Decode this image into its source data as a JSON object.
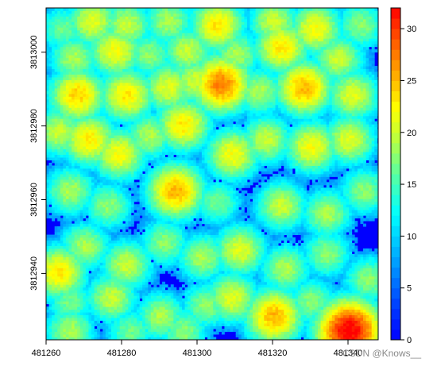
{
  "chart_data": {
    "type": "heatmap",
    "title": "",
    "xlabel": "",
    "ylabel": "",
    "x_ticks": [
      "481260",
      "481280",
      "481300",
      "481320",
      "481340"
    ],
    "x_tick_values": [
      481260,
      481280,
      481300,
      481320,
      481340
    ],
    "y_ticks": [
      "3812940",
      "3812960",
      "3812980",
      "3813000"
    ],
    "y_tick_values": [
      3812940,
      3812960,
      3812980,
      3813000
    ],
    "xlim": [
      481260,
      481348
    ],
    "ylim": [
      3812922,
      3813012
    ],
    "colorbar": {
      "ticks": [
        "0",
        "5",
        "10",
        "15",
        "20",
        "25",
        "30"
      ],
      "tick_values": [
        0,
        5,
        10,
        15,
        20,
        25,
        30
      ],
      "range": [
        0,
        32
      ],
      "colors": [
        "#0000ff",
        "#0060ff",
        "#00b4ff",
        "#00ffff",
        "#3cffc8",
        "#80ff80",
        "#c8ff3c",
        "#ffff00",
        "#ffc000",
        "#ff8000",
        "#ff4000",
        "#ff0000"
      ]
    },
    "crowns": [
      {
        "x": 481264,
        "y": 3813006,
        "h": 16
      },
      {
        "x": 481272,
        "y": 3813008,
        "h": 20
      },
      {
        "x": 481281,
        "y": 3813007,
        "h": 19
      },
      {
        "x": 481292,
        "y": 3813008,
        "h": 18
      },
      {
        "x": 481305,
        "y": 3813007,
        "h": 22
      },
      {
        "x": 481320,
        "y": 3813008,
        "h": 19
      },
      {
        "x": 481331,
        "y": 3813006,
        "h": 21
      },
      {
        "x": 481343,
        "y": 3813007,
        "h": 17
      },
      {
        "x": 481267,
        "y": 3812998,
        "h": 18
      },
      {
        "x": 481278,
        "y": 3813000,
        "h": 21
      },
      {
        "x": 481287,
        "y": 3812999,
        "h": 17
      },
      {
        "x": 481297,
        "y": 3813000,
        "h": 19
      },
      {
        "x": 481310,
        "y": 3812999,
        "h": 18
      },
      {
        "x": 481322,
        "y": 3813001,
        "h": 22
      },
      {
        "x": 481337,
        "y": 3812998,
        "h": 19
      },
      {
        "x": 481268,
        "y": 3812988,
        "h": 23
      },
      {
        "x": 481281,
        "y": 3812988,
        "h": 22
      },
      {
        "x": 481292,
        "y": 3812990,
        "h": 20
      },
      {
        "x": 481299,
        "y": 3812992,
        "h": 19
      },
      {
        "x": 481306,
        "y": 3812991,
        "h": 26
      },
      {
        "x": 481316,
        "y": 3812989,
        "h": 18
      },
      {
        "x": 481328,
        "y": 3812990,
        "h": 24
      },
      {
        "x": 481341,
        "y": 3812988,
        "h": 20
      },
      {
        "x": 481263,
        "y": 3812978,
        "h": 19
      },
      {
        "x": 481271,
        "y": 3812976,
        "h": 22
      },
      {
        "x": 481279,
        "y": 3812972,
        "h": 21
      },
      {
        "x": 481287,
        "y": 3812977,
        "h": 18
      },
      {
        "x": 481296,
        "y": 3812980,
        "h": 22
      },
      {
        "x": 481309,
        "y": 3812972,
        "h": 21
      },
      {
        "x": 481318,
        "y": 3812976,
        "h": 19
      },
      {
        "x": 481330,
        "y": 3812974,
        "h": 21
      },
      {
        "x": 481340,
        "y": 3812976,
        "h": 20
      },
      {
        "x": 481266,
        "y": 3812962,
        "h": 18
      },
      {
        "x": 481276,
        "y": 3812958,
        "h": 17
      },
      {
        "x": 481294,
        "y": 3812962,
        "h": 24
      },
      {
        "x": 481305,
        "y": 3812959,
        "h": 16
      },
      {
        "x": 481322,
        "y": 3812958,
        "h": 19
      },
      {
        "x": 481334,
        "y": 3812956,
        "h": 18
      },
      {
        "x": 481344,
        "y": 3812962,
        "h": 17
      },
      {
        "x": 481263,
        "y": 3812940,
        "h": 22
      },
      {
        "x": 481270,
        "y": 3812947,
        "h": 18
      },
      {
        "x": 481281,
        "y": 3812942,
        "h": 19
      },
      {
        "x": 481291,
        "y": 3812948,
        "h": 17
      },
      {
        "x": 481301,
        "y": 3812944,
        "h": 18
      },
      {
        "x": 481311,
        "y": 3812946,
        "h": 20
      },
      {
        "x": 481323,
        "y": 3812941,
        "h": 18
      },
      {
        "x": 481334,
        "y": 3812945,
        "h": 17
      },
      {
        "x": 481345,
        "y": 3812938,
        "h": 17
      },
      {
        "x": 481266,
        "y": 3812932,
        "h": 16
      },
      {
        "x": 481277,
        "y": 3812933,
        "h": 19
      },
      {
        "x": 481290,
        "y": 3812928,
        "h": 18
      },
      {
        "x": 481302,
        "y": 3812931,
        "h": 17
      },
      {
        "x": 481309,
        "y": 3812933,
        "h": 20
      },
      {
        "x": 481320,
        "y": 3812928,
        "h": 24
      },
      {
        "x": 481330,
        "y": 3812932,
        "h": 17
      },
      {
        "x": 481340,
        "y": 3812924,
        "h": 31
      },
      {
        "x": 481266,
        "y": 3812924,
        "h": 18
      },
      {
        "x": 481282,
        "y": 3812924,
        "h": 16
      },
      {
        "x": 481296,
        "y": 3812924,
        "h": 17
      },
      {
        "x": 481346,
        "y": 3812926,
        "h": 18
      }
    ]
  },
  "watermark": "CSDN @Knows__"
}
